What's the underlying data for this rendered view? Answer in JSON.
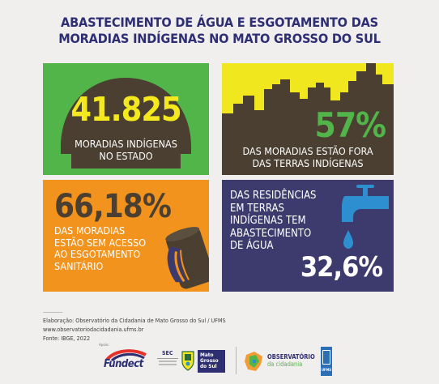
{
  "title": {
    "line1": "ABASTECIMENTO DE ÁGUA E ESGOTAMENTO DAS",
    "line2": "MORADIAS INDÍGENAS NO MATO GROSSO DO SUL"
  },
  "panels": {
    "households": {
      "value": "41.825",
      "line1": "MORADIAS INDÍGENAS",
      "line2": "NO ESTADO"
    },
    "outside": {
      "value": "57%",
      "line1": "DAS MORADIAS ESTÃO FORA",
      "line2": "DAS TERRAS INDÍGENAS"
    },
    "sewage": {
      "value": "66,18%",
      "line1": "DAS MORADIAS",
      "line2": "ESTÃO SEM ACESSO",
      "line3": "AO ESGOTAMENTO",
      "line4": "SANITÁRIO"
    },
    "water": {
      "line1": "DAS RESIDÊNCIAS",
      "line2": "EM TERRAS",
      "line3": "INDÍGENAS TEM",
      "line4": "ABASTECIMENTO",
      "line5": "DE ÁGUA",
      "value": "32,6%"
    }
  },
  "credits": {
    "line1": "Elaboração: Observatório da Cidadania de Mato Grosso do Sul / UFMS",
    "line2": "www.observatoriodacidadania.ufms.br",
    "line3": "Fonte: IBGE, 2022"
  },
  "logos": {
    "apoio": "Apoio:",
    "fundect": "Fundect",
    "sec": "SEC",
    "ms_line1": "Mato",
    "ms_line2": "Grosso",
    "ms_line3": "do Sul",
    "obs_line1": "OBSERVATÓRIO",
    "obs_line2": "da cidadania",
    "ufms": "UFMS"
  },
  "colors": {
    "title": "#2e2f73",
    "green": "#52b54a",
    "yellow": "#f1e71e",
    "orange": "#f2931e",
    "navy": "#3d3b6d",
    "brown": "#4a3f31"
  }
}
